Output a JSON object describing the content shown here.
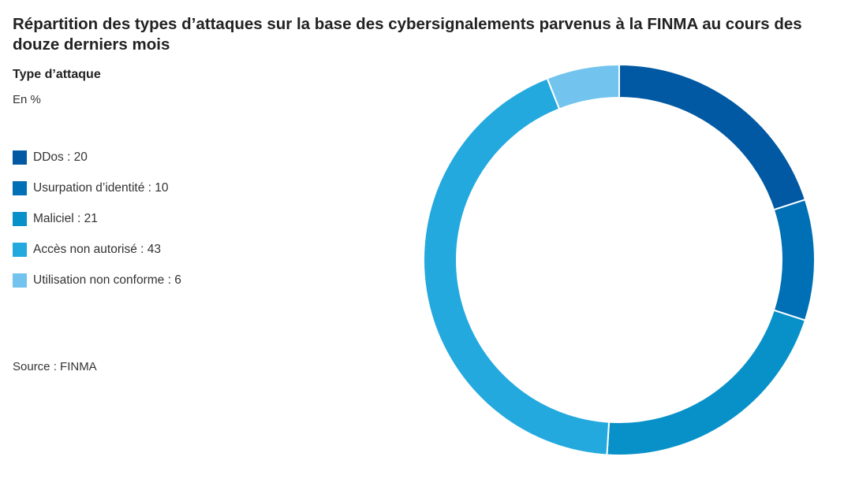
{
  "chart_data": {
    "type": "pie",
    "title": "Répartition des types d’attaques sur la base des cybersignalements parvenus à la FINMA au cours des douze derniers mois",
    "subtitle": "Type d’attaque",
    "unit_label": "En %",
    "source": "Source : FINMA",
    "legend_placement": "left",
    "donut": true,
    "slices": [
      {
        "label": "DDos",
        "value": 20,
        "legend_text": "DDos : 20",
        "color": "#0059a2"
      },
      {
        "label": "Usurpation d’identité",
        "value": 10,
        "legend_text": "Usurpation d’identité : 10",
        "color": "#0070b6"
      },
      {
        "label": "Maliciel",
        "value": 21,
        "legend_text": "Maliciel : 21",
        "color": "#0891c9"
      },
      {
        "label": "Accès non autorisé",
        "value": 43,
        "legend_text": "Accès non autorisé : 43",
        "color": "#23a9de"
      },
      {
        "label": "Utilisation non conforme",
        "value": 6,
        "legend_text": "Utilisation non conforme : 6",
        "color": "#72c4ee"
      }
    ]
  }
}
